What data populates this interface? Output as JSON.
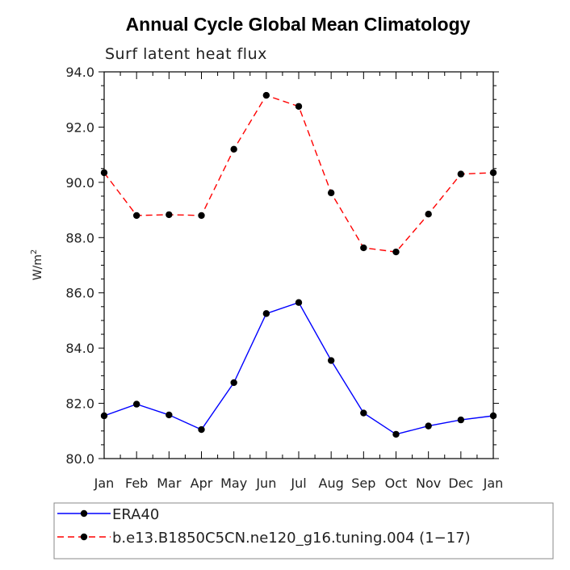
{
  "chart_data": {
    "type": "line",
    "title": "Annual Cycle Global Mean Climatology",
    "subtitle": "Surf latent heat flux",
    "xlabel": "",
    "ylabel": "W/m",
    "ylabel_superscript": "2",
    "categories": [
      "Jan",
      "Feb",
      "Mar",
      "Apr",
      "May",
      "Jun",
      "Jul",
      "Aug",
      "Sep",
      "Oct",
      "Nov",
      "Dec",
      "Jan"
    ],
    "ylim": [
      80.0,
      94.0
    ],
    "yticks": [
      "80.0",
      "82.0",
      "84.0",
      "86.0",
      "88.0",
      "90.0",
      "92.0",
      "94.0"
    ],
    "grid": false,
    "legend_position": "bottom",
    "series": [
      {
        "name": "ERA40",
        "color": "#0000ff",
        "dash": "solid",
        "values": [
          81.55,
          81.97,
          81.58,
          81.05,
          82.75,
          85.25,
          85.65,
          83.55,
          81.65,
          80.88,
          81.18,
          81.4,
          81.55
        ]
      },
      {
        "name": "b.e13.B1850C5CN.ne120_g16.tuning.004 (1−17)",
        "color": "#ff0000",
        "dash": "dashed",
        "values": [
          90.35,
          88.8,
          88.83,
          88.8,
          91.2,
          93.15,
          92.75,
          89.62,
          87.63,
          87.48,
          88.85,
          90.3,
          90.35
        ]
      }
    ]
  }
}
